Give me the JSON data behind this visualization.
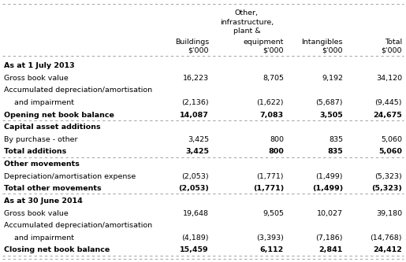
{
  "col_headers_line1": [
    "",
    "Other,",
    "",
    ""
  ],
  "col_headers_line2": [
    "",
    "infrastructure,",
    "",
    ""
  ],
  "col_headers_line3": [
    "",
    "plant &",
    "",
    ""
  ],
  "col_headers": [
    "Buildings",
    "equipment",
    "Intangibles",
    "Total"
  ],
  "col_units": [
    "$'000",
    "$'000",
    "$'000",
    "$'000"
  ],
  "rows": [
    {
      "label": "As at 1 July 2013",
      "bold": true,
      "values": [
        "",
        "",
        "",
        ""
      ],
      "section_header": true,
      "underline": false
    },
    {
      "label": "Gross book value",
      "bold": false,
      "values": [
        "16,223",
        "8,705",
        "9,192",
        "34,120"
      ],
      "section_header": false,
      "underline": false
    },
    {
      "label": "Accumulated depreciation/amortisation",
      "bold": false,
      "values": [
        "",
        "",
        "",
        ""
      ],
      "section_header": false,
      "underline": false,
      "continuation": true
    },
    {
      "label": "and impairment",
      "bold": false,
      "values": [
        "(2,136)",
        "(1,622)",
        "(5,687)",
        "(9,445)"
      ],
      "section_header": false,
      "underline": false,
      "indented": true
    },
    {
      "label": "Opening net book balance",
      "bold": true,
      "values": [
        "14,087",
        "7,083",
        "3,505",
        "24,675"
      ],
      "section_header": false,
      "underline": true
    },
    {
      "label": "Capital asset additions",
      "bold": true,
      "values": [
        "",
        "",
        "",
        ""
      ],
      "section_header": true,
      "underline": false
    },
    {
      "label": "By purchase - other",
      "bold": false,
      "values": [
        "3,425",
        "800",
        "835",
        "5,060"
      ],
      "section_header": false,
      "underline": false
    },
    {
      "label": "Total additions",
      "bold": true,
      "values": [
        "3,425",
        "800",
        "835",
        "5,060"
      ],
      "section_header": false,
      "underline": true
    },
    {
      "label": "Other movements",
      "bold": true,
      "values": [
        "",
        "",
        "",
        ""
      ],
      "section_header": true,
      "underline": false
    },
    {
      "label": "Depreciation/amortisation expense",
      "bold": false,
      "values": [
        "(2,053)",
        "(1,771)",
        "(1,499)",
        "(5,323)"
      ],
      "section_header": false,
      "underline": false
    },
    {
      "label": "Total other movements",
      "bold": true,
      "values": [
        "(2,053)",
        "(1,771)",
        "(1,499)",
        "(5,323)"
      ],
      "section_header": false,
      "underline": true
    },
    {
      "label": "As at 30 June 2014",
      "bold": true,
      "values": [
        "",
        "",
        "",
        ""
      ],
      "section_header": true,
      "underline": false
    },
    {
      "label": "Gross book value",
      "bold": false,
      "values": [
        "19,648",
        "9,505",
        "10,027",
        "39,180"
      ],
      "section_header": false,
      "underline": false
    },
    {
      "label": "Accumulated depreciation/amortisation",
      "bold": false,
      "values": [
        "",
        "",
        "",
        ""
      ],
      "section_header": false,
      "underline": false,
      "continuation": true
    },
    {
      "label": "and impairment",
      "bold": false,
      "values": [
        "(4,189)",
        "(3,393)",
        "(7,186)",
        "(14,768)"
      ],
      "section_header": false,
      "underline": false,
      "indented": true
    },
    {
      "label": "Closing net book balance",
      "bold": true,
      "values": [
        "15,459",
        "6,112",
        "2,841",
        "24,412"
      ],
      "section_header": false,
      "underline": true
    }
  ],
  "bg_color": "#ffffff",
  "text_color": "#000000",
  "border_color": "#aaaaaa",
  "font_size": 6.8,
  "figsize": [
    5.15,
    3.33
  ],
  "dpi": 100
}
